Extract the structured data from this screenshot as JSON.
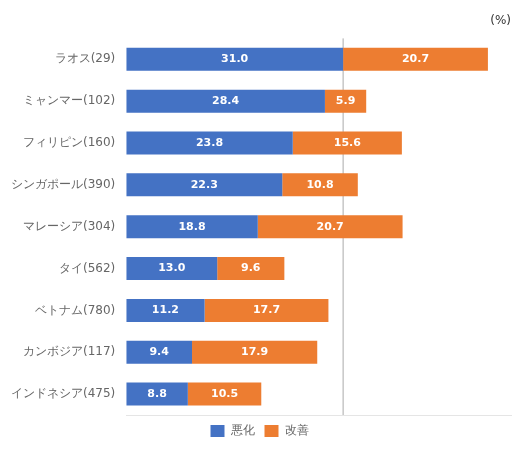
{
  "chart_data": {
    "type": "bar",
    "orientation": "horizontal",
    "stacked": true,
    "title": "(%)",
    "categories": [
      "ラオス(29)",
      "ミャンマー(102)",
      "フィリピン(160)",
      "シンガポール(390)",
      "マレーシア(304)",
      "タイ(562)",
      "ベトナム(780)",
      "カンボジア(117)",
      "インドネシア(475)"
    ],
    "series": [
      {
        "name": "悪化",
        "color": "#4472C4",
        "values": [
          31.0,
          28.4,
          23.8,
          22.3,
          18.8,
          13.0,
          11.2,
          9.4,
          8.8
        ],
        "value_labels": [
          "31.0",
          "28.4",
          "23.8",
          "22.3",
          "18.8",
          "13.0",
          "11.2",
          "9.4",
          "8.8"
        ]
      },
      {
        "name": "改善",
        "color": "#ED7D31",
        "values": [
          20.7,
          5.9,
          15.6,
          10.8,
          20.7,
          9.6,
          17.7,
          17.9,
          10.5
        ],
        "value_labels": [
          "20.7",
          "5.9",
          "15.6",
          "10.8",
          "20.7",
          "9.6",
          "17.7",
          "17.9",
          "10.5"
        ]
      }
    ],
    "reference_line_x": 31.0,
    "xlim": [
      0,
      55
    ],
    "data_labels": true,
    "tick_labels": "y",
    "grid": false,
    "legend": "bottom"
  }
}
